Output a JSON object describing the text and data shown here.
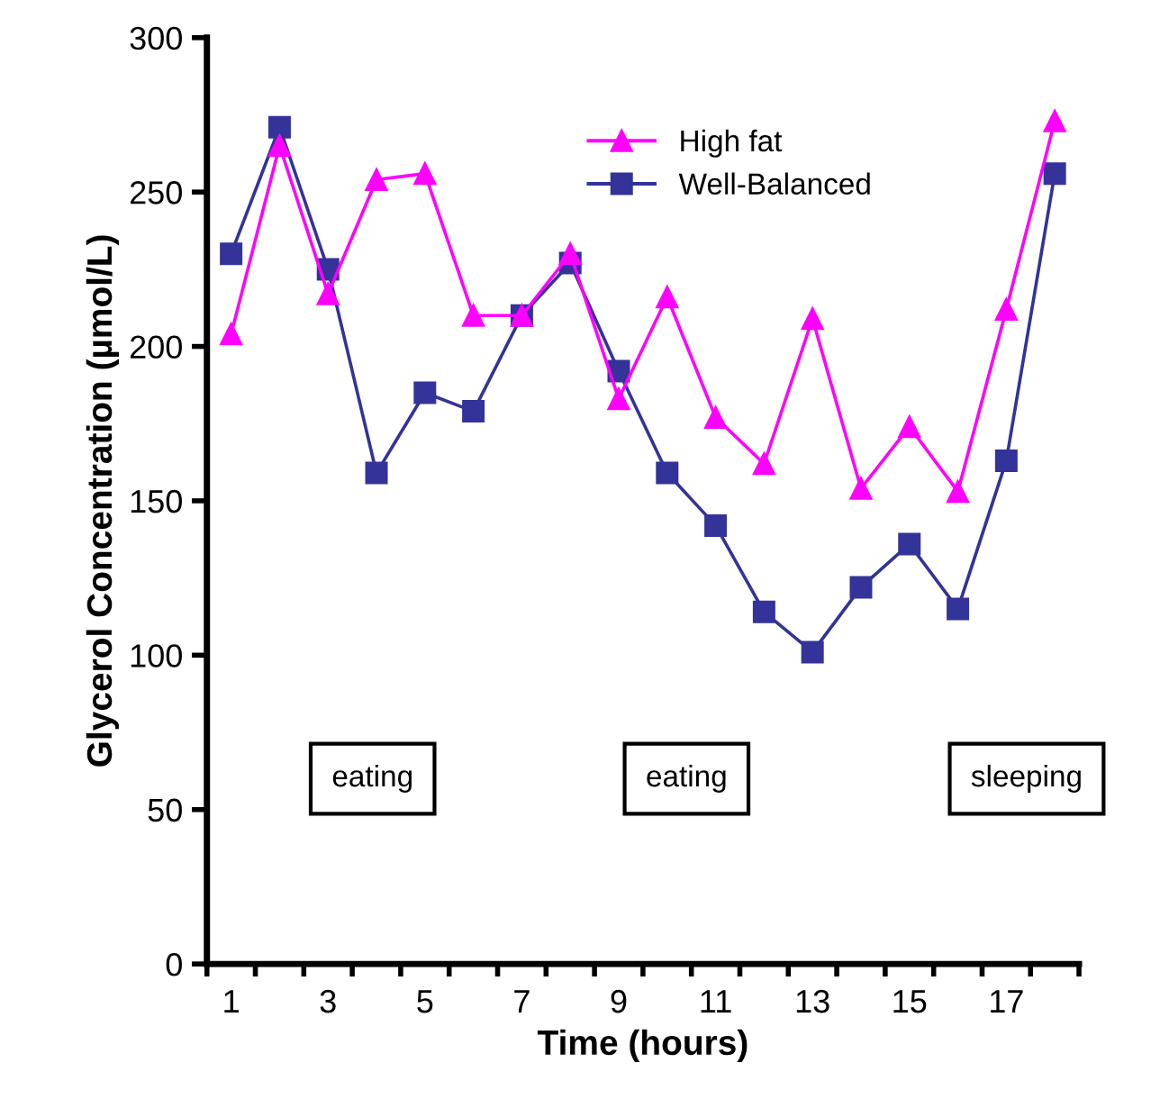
{
  "chart_data": {
    "type": "line",
    "xlabel": "Time (hours)",
    "ylabel": "Glycerol Concentration (µmol/L)",
    "categories": [
      "1",
      null,
      "3",
      null,
      "5",
      null,
      "7",
      null,
      "9",
      null,
      "11",
      null,
      "13",
      null,
      "15",
      null,
      "17",
      null
    ],
    "series": [
      {
        "name": "High fat",
        "color": "#ff00ff",
        "marker": "triangle",
        "values": [
          204,
          265,
          217,
          254,
          256,
          210,
          210,
          230,
          183,
          216,
          177,
          162,
          209,
          154,
          174,
          153,
          212,
          273
        ]
      },
      {
        "name": "Well-Balanced",
        "color": "#333399",
        "marker": "square",
        "values": [
          230,
          271,
          225,
          159,
          185,
          179,
          210,
          227,
          192,
          159,
          142,
          114,
          101,
          122,
          136,
          115,
          163,
          256
        ]
      }
    ],
    "ylim": [
      0,
      300
    ],
    "yticks": [
      0,
      50,
      100,
      150,
      200,
      250,
      300
    ],
    "grid": false,
    "legend": "top",
    "line_style": "solid",
    "annotations": [
      "eating",
      "eating",
      "sleeping"
    ]
  }
}
